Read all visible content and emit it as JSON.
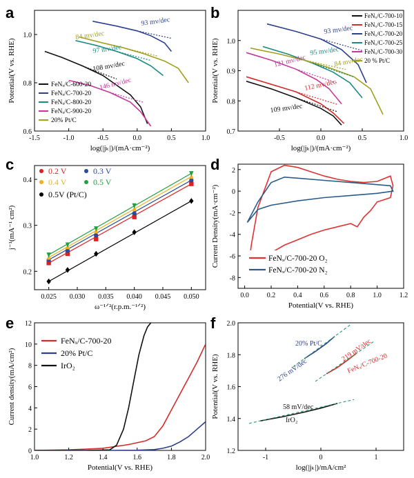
{
  "chart_data": [
    {
      "panel": "a",
      "type": "line",
      "xlabel": "log(|jₖ|)/(mA·cm⁻²)",
      "ylabel": "Potential(V vs. RHE)",
      "xlim": [
        -1.5,
        1.0
      ],
      "ylim": [
        0.6,
        1.1
      ],
      "xticks": [
        "-1.5",
        "-1.0",
        "-0.5",
        "0.0",
        "0.5",
        "1.0"
      ],
      "yticks": [
        "0.6",
        "0.8",
        "1.0"
      ],
      "legend_position": "bottom-left",
      "series": [
        {
          "name": "FeNₓ/C-600-20",
          "color": "#111111",
          "x": [
            -1.35,
            -1.1,
            -0.8,
            -0.5,
            -0.3,
            -0.1,
            0.05,
            0.15
          ],
          "y": [
            0.93,
            0.905,
            0.87,
            0.83,
            0.79,
            0.75,
            0.7,
            0.63
          ]
        },
        {
          "name": "FeNₓ/C-700-20",
          "color": "#2b3f8c",
          "x": [
            -0.65,
            -0.3,
            0.0,
            0.2,
            0.4,
            0.5
          ],
          "y": [
            1.055,
            1.035,
            1.015,
            0.995,
            0.965,
            0.93
          ]
        },
        {
          "name": "FeNₓ/C-800-20",
          "color": "#1a8a80",
          "x": [
            -0.9,
            -0.6,
            -0.3,
            0.0,
            0.2,
            0.38
          ],
          "y": [
            0.975,
            0.955,
            0.93,
            0.9,
            0.87,
            0.83
          ]
        },
        {
          "name": "FeNₓ/C-900-20",
          "color": "#c4389a",
          "x": [
            -1.0,
            -0.7,
            -0.4,
            -0.1,
            0.05,
            0.2
          ],
          "y": [
            0.81,
            0.79,
            0.76,
            0.72,
            0.68,
            0.62
          ]
        },
        {
          "name": "20% Pt/C",
          "color": "#a0a020",
          "x": [
            -0.85,
            -0.5,
            -0.2,
            0.1,
            0.4,
            0.6,
            0.75
          ],
          "y": [
            0.99,
            0.965,
            0.945,
            0.92,
            0.89,
            0.86,
            0.8
          ]
        }
      ],
      "annotations": [
        {
          "text": "93 mv/dec",
          "color": "#2b3f8c"
        },
        {
          "text": "84 mv/dec",
          "color": "#a0a020"
        },
        {
          "text": "97 mv/dec",
          "color": "#1a8a80"
        },
        {
          "text": "108 mv/dec",
          "color": "#111111"
        },
        {
          "text": "146 mv/dec",
          "color": "#c4389a"
        }
      ]
    },
    {
      "panel": "b",
      "type": "line",
      "xlabel": "log(|jₖ|)/(mA·cm⁻²)",
      "ylabel": "Potential(V vs. RHE)",
      "xlim": [
        -1.0,
        1.0
      ],
      "ylim": [
        0.7,
        1.1
      ],
      "xticks": [
        "-0.5",
        "0.0",
        "0.5",
        "1.0"
      ],
      "yticks": [
        "0.7",
        "0.8",
        "0.9",
        "1.0"
      ],
      "legend_position": "top-right",
      "series": [
        {
          "name": "FeNₓ/C-700-10",
          "color": "#111111",
          "x": [
            -0.9,
            -0.6,
            -0.3,
            0.0,
            0.15,
            0.25
          ],
          "y": [
            0.865,
            0.84,
            0.81,
            0.775,
            0.75,
            0.72
          ]
        },
        {
          "name": "FeNₓ/C-700-15",
          "color": "#d42b2b",
          "x": [
            -0.9,
            -0.6,
            -0.3,
            0.0,
            0.15,
            0.28
          ],
          "y": [
            0.88,
            0.855,
            0.83,
            0.79,
            0.76,
            0.725
          ]
        },
        {
          "name": "FeNₓ/C-700-20",
          "color": "#2b3f8c",
          "x": [
            -0.65,
            -0.3,
            0.0,
            0.25,
            0.45,
            0.55
          ],
          "y": [
            1.055,
            1.03,
            1.005,
            0.97,
            0.92,
            0.86
          ]
        },
        {
          "name": "FeNₓ/C-700-25",
          "color": "#1a8a80",
          "x": [
            -0.7,
            -0.4,
            -0.1,
            0.15,
            0.35,
            0.5
          ],
          "y": [
            0.98,
            0.955,
            0.925,
            0.895,
            0.86,
            0.81
          ]
        },
        {
          "name": "FeNₓ/C-700-30",
          "color": "#c4389a",
          "x": [
            -0.9,
            -0.6,
            -0.3,
            -0.05,
            0.1,
            0.25
          ],
          "y": [
            0.96,
            0.935,
            0.905,
            0.87,
            0.84,
            0.79
          ]
        },
        {
          "name": "20 % Pt/C",
          "color": "#a0a020",
          "x": [
            -0.85,
            -0.5,
            -0.2,
            0.1,
            0.4,
            0.6,
            0.75
          ],
          "y": [
            0.975,
            0.955,
            0.935,
            0.91,
            0.88,
            0.84,
            0.755
          ]
        }
      ],
      "annotations": [
        {
          "text": "93 mv/dec",
          "color": "#2b3f8c"
        },
        {
          "text": "95 mv/dec",
          "color": "#1a8a80"
        },
        {
          "text": "84 mv/dec",
          "color": "#a0a020"
        },
        {
          "text": "121 mv/dec",
          "color": "#c4389a"
        },
        {
          "text": "112 mv/dec",
          "color": "#d42b2b"
        },
        {
          "text": "109 mv/dec",
          "color": "#111111"
        }
      ]
    },
    {
      "panel": "c",
      "type": "scatter",
      "xlabel": "ω⁻¹ᐟ²(r.p.m.⁻¹ᐟ²)",
      "ylabel": "j⁻¹(mA⁻¹ cm²)",
      "xlim": [
        0.0225,
        0.0525
      ],
      "ylim": [
        0.16,
        0.43
      ],
      "xticks": [
        "0.025",
        "0.030",
        "0.035",
        "0.040",
        "0.045",
        "0.050"
      ],
      "yticks": [
        "0.2",
        "0.3",
        "0.4"
      ],
      "legend_position": "top-left",
      "x": [
        0.025,
        0.0283,
        0.0333,
        0.04,
        0.05
      ],
      "series": [
        {
          "name": "0.2 V",
          "color": "#e02020",
          "marker": "square",
          "y": [
            0.218,
            0.238,
            0.27,
            0.318,
            0.39
          ]
        },
        {
          "name": "0.3 V",
          "color": "#2a4a9a",
          "marker": "circle",
          "y": [
            0.225,
            0.245,
            0.278,
            0.326,
            0.398
          ]
        },
        {
          "name": "0.4 V",
          "color": "#f0b020",
          "marker": "triangle-up",
          "y": [
            0.23,
            0.253,
            0.287,
            0.336,
            0.406
          ]
        },
        {
          "name": "0.5 V",
          "color": "#20a040",
          "marker": "triangle-down",
          "y": [
            0.236,
            0.258,
            0.293,
            0.343,
            0.413
          ]
        },
        {
          "name": "0.5V (Pt/C)",
          "color": "#000000",
          "marker": "diamond",
          "y": [
            0.178,
            0.203,
            0.238,
            0.285,
            0.353
          ]
        }
      ]
    },
    {
      "panel": "d",
      "type": "line",
      "xlabel": "Potential(V vs. RHE)",
      "ylabel": "Current Density(mA·cm⁻²)",
      "xlim": [
        -0.05,
        1.2
      ],
      "ylim": [
        -9,
        2.5
      ],
      "xticks": [
        "0.0",
        "0.2",
        "0.4",
        "0.6",
        "0.8",
        "1.0",
        "1.2"
      ],
      "yticks": [
        "-8",
        "-6",
        "-4",
        "-2",
        "0",
        "2"
      ],
      "legend_position": "bottom-right",
      "series": [
        {
          "name": "FeNₓ/C-700-20 O₂",
          "color": "#e03030",
          "x": [
            0.02,
            0.05,
            0.1,
            0.2,
            0.3,
            0.4,
            0.5,
            0.6,
            0.7,
            0.8,
            0.9,
            1.0,
            1.1,
            1.12,
            1.1,
            1.0,
            0.95,
            0.9,
            0.85,
            0.8,
            0.7,
            0.6,
            0.5,
            0.4,
            0.3,
            0.2,
            0.1,
            0.05,
            0.02
          ],
          "y": [
            -8.0,
            -5.0,
            -1.5,
            1.8,
            2.4,
            2.2,
            1.8,
            1.4,
            1.1,
            0.9,
            0.8,
            0.9,
            1.4,
            0.5,
            -0.6,
            -1.0,
            -1.8,
            -2.4,
            -3.3,
            -3.0,
            -3.3,
            -3.6,
            -4.0,
            -4.5,
            -5.0,
            -5.7,
            -6.4,
            -7.2,
            -8.0
          ]
        },
        {
          "name": "FeNₓ/C-700-20 N₂",
          "color": "#2a5a8a",
          "x": [
            0.02,
            0.1,
            0.2,
            0.3,
            0.4,
            0.6,
            0.8,
            1.0,
            1.1,
            1.12,
            1.0,
            0.8,
            0.6,
            0.4,
            0.2,
            0.1,
            0.02
          ],
          "y": [
            -2.9,
            -1.0,
            0.8,
            1.3,
            1.2,
            1.0,
            0.8,
            0.6,
            0.5,
            0.0,
            -0.2,
            -0.4,
            -0.6,
            -0.9,
            -1.3,
            -1.7,
            -2.9
          ]
        }
      ]
    },
    {
      "panel": "e",
      "type": "line",
      "xlabel": "Potential(V vs. RHE)",
      "ylabel": "Current density(mA/cm²)",
      "xlim": [
        1.0,
        2.0
      ],
      "ylim": [
        0,
        12
      ],
      "xticks": [
        "1.0",
        "1.2",
        "1.4",
        "1.6",
        "1.8",
        "2.0"
      ],
      "yticks": [
        "0",
        "2",
        "4",
        "6",
        "8",
        "10",
        "12"
      ],
      "legend_position": "top-left",
      "series": [
        {
          "name": "FeNₓ/C-700-20",
          "color": "#d42b2b",
          "x": [
            1.0,
            1.2,
            1.4,
            1.55,
            1.65,
            1.7,
            1.75,
            1.8,
            1.85,
            1.9,
            1.95,
            2.0
          ],
          "y": [
            0.0,
            0.05,
            0.2,
            0.55,
            0.9,
            1.3,
            2.3,
            3.8,
            5.3,
            6.8,
            8.3,
            10.0
          ]
        },
        {
          "name": "20% Pt/C",
          "color": "#2b3f8c",
          "x": [
            1.0,
            1.4,
            1.6,
            1.7,
            1.75,
            1.8,
            1.85,
            1.9,
            1.95,
            2.0
          ],
          "y": [
            0.0,
            0.0,
            0.02,
            0.08,
            0.2,
            0.4,
            0.8,
            1.3,
            2.0,
            2.7
          ]
        },
        {
          "name": "IrO₂",
          "color": "#111111",
          "x": [
            1.0,
            1.3,
            1.44,
            1.48,
            1.52,
            1.55,
            1.58,
            1.61,
            1.64,
            1.66,
            1.68
          ],
          "y": [
            0.0,
            0.0,
            0.05,
            0.5,
            2.0,
            4.0,
            6.5,
            9.0,
            10.8,
            11.6,
            12.0
          ]
        }
      ]
    },
    {
      "panel": "f",
      "type": "line",
      "xlabel": "log(|jₖ|)/mA/cm²",
      "ylabel": "Potential(V vs. RHE)",
      "xlim": [
        -1.5,
        1.5
      ],
      "ylim": [
        1.2,
        2.0
      ],
      "xticks": [
        "-1",
        "0",
        "1"
      ],
      "yticks": [
        "1.2",
        "1.4",
        "1.6",
        "1.8",
        "2.0"
      ],
      "series": [
        {
          "name": "20% Pt/C",
          "color": "#2b3f8c",
          "x": [
            -0.3,
            -0.1,
            0.1,
            0.25
          ],
          "y": [
            1.775,
            1.82,
            1.87,
            1.915
          ]
        },
        {
          "name": "FeNₓ/C-700-20",
          "color": "#d42b2b",
          "x": [
            0.1,
            0.3,
            0.5,
            0.65
          ],
          "y": [
            1.68,
            1.72,
            1.77,
            1.81
          ]
        },
        {
          "name": "IrO₂",
          "color": "#111111",
          "x": [
            -1.1,
            -0.7,
            -0.3,
            0.0,
            0.3
          ],
          "y": [
            1.385,
            1.41,
            1.44,
            1.465,
            1.495
          ]
        }
      ],
      "annotations": [
        {
          "text": "20% Pt/C",
          "color": "#2b3f8c"
        },
        {
          "text": "276 mV/dec",
          "color": "#2b3f8c"
        },
        {
          "text": "219 mV/dec",
          "color": "#d42b2b"
        },
        {
          "text": "FeNₓ/C-700-20",
          "color": "#d42b2b"
        },
        {
          "text": "58 mV/dec",
          "color": "#111111"
        },
        {
          "text": "IrO₂",
          "color": "#111111"
        }
      ]
    }
  ]
}
